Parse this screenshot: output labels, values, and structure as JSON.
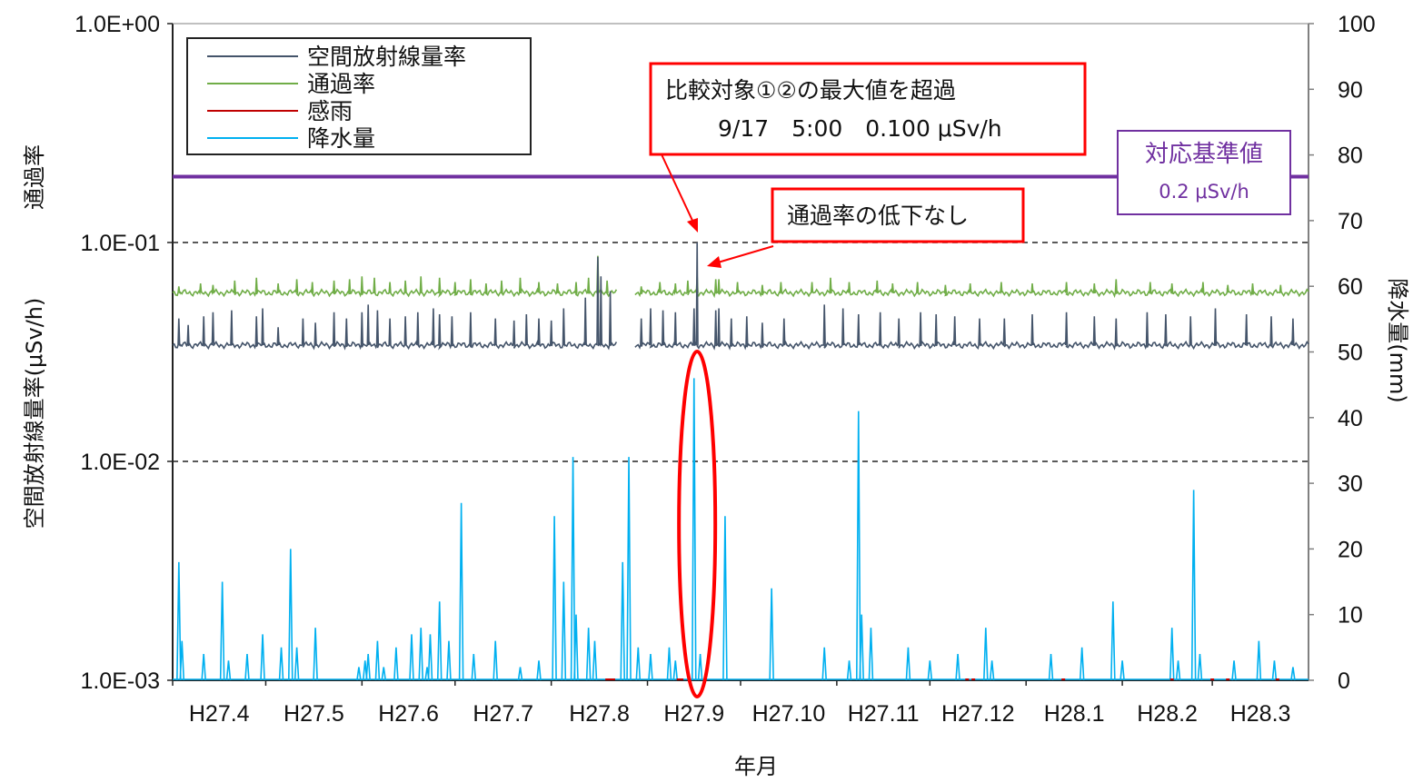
{
  "chart_data": {
    "type": "line",
    "xlabel": "年月",
    "ylabel_left": "空間放射線量率(μSv/h)",
    "ylabel_left_secondary": "通過率",
    "ylabel_right": "降水量(mm)",
    "y_left_scale": "log",
    "y_left_range": [
      0.001,
      1
    ],
    "y_left_ticks": [
      "1.0E+00",
      "1.0E-01",
      "1.0E-02",
      "1.0E-03"
    ],
    "y_right_range": [
      0,
      100
    ],
    "y_right_ticks": [
      "100",
      "90",
      "80",
      "70",
      "60",
      "50",
      "40",
      "30",
      "20",
      "10",
      "0"
    ],
    "x_range": [
      0,
      366
    ],
    "x_ticks": [
      {
        "label": "H27.4",
        "x": 0
      },
      {
        "label": "H27.5",
        "x": 30
      },
      {
        "label": "H27.6",
        "x": 61
      },
      {
        "label": "H27.7",
        "x": 91
      },
      {
        "label": "H27.8",
        "x": 122
      },
      {
        "label": "H27.9",
        "x": 153
      },
      {
        "label": "H27.10",
        "x": 183
      },
      {
        "label": "H27.11",
        "x": 214
      },
      {
        "label": "H27.12",
        "x": 244
      },
      {
        "label": "H28.1",
        "x": 275
      },
      {
        "label": "H28.2",
        "x": 306
      },
      {
        "label": "H28.3",
        "x": 335
      }
    ],
    "gap": [
      143,
      149
    ],
    "legend": {
      "position": "top-left",
      "entries": [
        {
          "name": "空間放射線量率",
          "color": "#44546a"
        },
        {
          "name": "通過率",
          "color": "#70ad47"
        },
        {
          "name": "感雨",
          "color": "#c00000"
        },
        {
          "name": "降水量",
          "color": "#00b0f0"
        }
      ]
    },
    "reference_line": {
      "label": "対応基準値",
      "value_label": "0.2 μSv/h",
      "value": 0.2,
      "color": "#7030a0"
    },
    "dashed_lines": [
      0.1,
      0.01
    ],
    "series": [
      {
        "name": "空間放射線量率",
        "axis": "left",
        "color": "#44546a",
        "baseline": 0.034,
        "spikes": [
          [
            2,
            0.045
          ],
          [
            5,
            0.042
          ],
          [
            10,
            0.046
          ],
          [
            13,
            0.048
          ],
          [
            19,
            0.049
          ],
          [
            27,
            0.046
          ],
          [
            29,
            0.05
          ],
          [
            34,
            0.041
          ],
          [
            42,
            0.045
          ],
          [
            46,
            0.043
          ],
          [
            52,
            0.048
          ],
          [
            56,
            0.045
          ],
          [
            61,
            0.048
          ],
          [
            63,
            0.052
          ],
          [
            66,
            0.049
          ],
          [
            70,
            0.045
          ],
          [
            75,
            0.046
          ],
          [
            79,
            0.048
          ],
          [
            84,
            0.05
          ],
          [
            86,
            0.047
          ],
          [
            90,
            0.046
          ],
          [
            96,
            0.048
          ],
          [
            104,
            0.045
          ],
          [
            110,
            0.044
          ],
          [
            114,
            0.047
          ],
          [
            118,
            0.045
          ],
          [
            122,
            0.044
          ],
          [
            126,
            0.05
          ],
          [
            133,
            0.056
          ],
          [
            137,
            0.086
          ],
          [
            138,
            0.07
          ],
          [
            141,
            0.06
          ],
          [
            151,
            0.045
          ],
          [
            154,
            0.05
          ],
          [
            158,
            0.049
          ],
          [
            162,
            0.048
          ],
          [
            168,
            0.05
          ],
          [
            169,
            0.1
          ],
          [
            175,
            0.049
          ],
          [
            176,
            0.05
          ],
          [
            180,
            0.045
          ],
          [
            185,
            0.046
          ],
          [
            190,
            0.043
          ],
          [
            197,
            0.045
          ],
          [
            210,
            0.052
          ],
          [
            216,
            0.05
          ],
          [
            221,
            0.047
          ],
          [
            228,
            0.048
          ],
          [
            234,
            0.045
          ],
          [
            241,
            0.048
          ],
          [
            246,
            0.047
          ],
          [
            252,
            0.046
          ],
          [
            260,
            0.045
          ],
          [
            268,
            0.045
          ],
          [
            277,
            0.047
          ],
          [
            288,
            0.048
          ],
          [
            297,
            0.046
          ],
          [
            304,
            0.045
          ],
          [
            314,
            0.048
          ],
          [
            320,
            0.047
          ],
          [
            328,
            0.046
          ],
          [
            336,
            0.05
          ],
          [
            346,
            0.047
          ],
          [
            354,
            0.046
          ],
          [
            361,
            0.045
          ]
        ]
      },
      {
        "name": "通過率",
        "axis": "left",
        "color": "#70ad47",
        "baseline": 0.059,
        "spikes": [
          [
            2,
            0.063
          ],
          [
            9,
            0.065
          ],
          [
            13,
            0.064
          ],
          [
            20,
            0.067
          ],
          [
            27,
            0.069
          ],
          [
            34,
            0.065
          ],
          [
            40,
            0.068
          ],
          [
            45,
            0.066
          ],
          [
            52,
            0.067
          ],
          [
            57,
            0.068
          ],
          [
            61,
            0.07
          ],
          [
            65,
            0.069
          ],
          [
            70,
            0.066
          ],
          [
            75,
            0.067
          ],
          [
            80,
            0.07
          ],
          [
            86,
            0.069
          ],
          [
            91,
            0.066
          ],
          [
            96,
            0.068
          ],
          [
            101,
            0.065
          ],
          [
            106,
            0.067
          ],
          [
            112,
            0.069
          ],
          [
            118,
            0.066
          ],
          [
            124,
            0.065
          ],
          [
            130,
            0.066
          ],
          [
            134,
            0.069
          ],
          [
            137,
            0.087
          ],
          [
            140,
            0.067
          ],
          [
            151,
            0.063
          ],
          [
            157,
            0.066
          ],
          [
            162,
            0.065
          ],
          [
            166,
            0.067
          ],
          [
            169,
            0.07
          ],
          [
            175,
            0.068
          ],
          [
            176,
            0.068
          ],
          [
            182,
            0.066
          ],
          [
            190,
            0.064
          ],
          [
            196,
            0.066
          ],
          [
            206,
            0.066
          ],
          [
            212,
            0.069
          ],
          [
            218,
            0.066
          ],
          [
            227,
            0.067
          ],
          [
            232,
            0.065
          ],
          [
            240,
            0.066
          ],
          [
            249,
            0.064
          ],
          [
            257,
            0.065
          ],
          [
            267,
            0.066
          ],
          [
            277,
            0.065
          ],
          [
            288,
            0.066
          ],
          [
            297,
            0.065
          ],
          [
            304,
            0.068
          ],
          [
            315,
            0.066
          ],
          [
            322,
            0.065
          ],
          [
            332,
            0.066
          ],
          [
            340,
            0.064
          ],
          [
            348,
            0.065
          ],
          [
            357,
            0.064
          ]
        ]
      },
      {
        "name": "感雨",
        "axis": "left",
        "color": "#c00000",
        "events": [
          140,
          141,
          142,
          163,
          164,
          256,
          258,
          287,
          322,
          335,
          340,
          356
        ]
      },
      {
        "name": "降水量",
        "axis": "right",
        "color": "#00b0f0",
        "peaks": [
          [
            2,
            18
          ],
          [
            3,
            6
          ],
          [
            10,
            4
          ],
          [
            16,
            15
          ],
          [
            18,
            3
          ],
          [
            24,
            4
          ],
          [
            29,
            7
          ],
          [
            35,
            5
          ],
          [
            38,
            20
          ],
          [
            40,
            5
          ],
          [
            46,
            8
          ],
          [
            60,
            2
          ],
          [
            62,
            3
          ],
          [
            63,
            4
          ],
          [
            66,
            6
          ],
          [
            68,
            2
          ],
          [
            72,
            5
          ],
          [
            77,
            7
          ],
          [
            80,
            8
          ],
          [
            82,
            2
          ],
          [
            83,
            7
          ],
          [
            86,
            12
          ],
          [
            89,
            6
          ],
          [
            93,
            27
          ],
          [
            97,
            4
          ],
          [
            104,
            6
          ],
          [
            112,
            2
          ],
          [
            118,
            3
          ],
          [
            123,
            25
          ],
          [
            126,
            15
          ],
          [
            129,
            34
          ],
          [
            130,
            10
          ],
          [
            134,
            8
          ],
          [
            136,
            6
          ],
          [
            145,
            18
          ],
          [
            147,
            34
          ],
          [
            150,
            5
          ],
          [
            154,
            4
          ],
          [
            160,
            5
          ],
          [
            162,
            3
          ],
          [
            168,
            46
          ],
          [
            170,
            4
          ],
          [
            178,
            25
          ],
          [
            193,
            14
          ],
          [
            210,
            5
          ],
          [
            218,
            3
          ],
          [
            221,
            41
          ],
          [
            222,
            10
          ],
          [
            225,
            8
          ],
          [
            237,
            5
          ],
          [
            244,
            3
          ],
          [
            253,
            4
          ],
          [
            262,
            8
          ],
          [
            264,
            3
          ],
          [
            283,
            4
          ],
          [
            293,
            5
          ],
          [
            303,
            12
          ],
          [
            306,
            3
          ],
          [
            322,
            8
          ],
          [
            324,
            3
          ],
          [
            329,
            29
          ],
          [
            331,
            4
          ],
          [
            342,
            3
          ],
          [
            350,
            6
          ],
          [
            355,
            3
          ],
          [
            361,
            2
          ]
        ]
      }
    ],
    "annotations": [
      {
        "text_line1": "比較対象①②の最大値を超過",
        "text_line2": "9/17　5:00　0.100 μSv/h",
        "points_to": [
          169,
          0.1
        ],
        "color": "#ff0000"
      },
      {
        "text": "通過率の低下なし",
        "points_to": [
          169,
          0.07
        ],
        "color": "#ff0000"
      }
    ],
    "highlight_ellipse": {
      "x": 169,
      "color": "#ff0000"
    }
  }
}
